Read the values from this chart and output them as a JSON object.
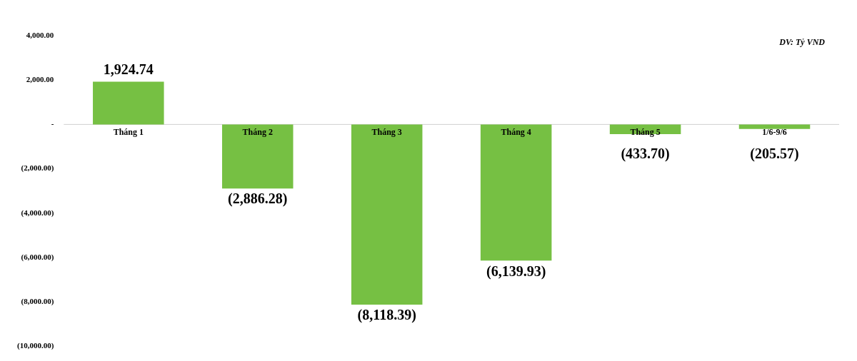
{
  "chart_data": {
    "type": "bar",
    "categories": [
      "Tháng 1",
      "Tháng 2",
      "Tháng 3",
      "Tháng 4",
      "Tháng 5",
      "1/6-9/6"
    ],
    "values": [
      1924.74,
      -2886.28,
      -8118.39,
      -6139.93,
      -433.7,
      -205.57
    ],
    "color": "#76c043",
    "value_labels": [
      "1,924.74",
      "(2,886.28)",
      "(8,118.39)",
      "(6,139.93)",
      "(433.70)",
      "(205.57)"
    ],
    "ylim": [
      -10000,
      4000
    ],
    "yticks": [
      {
        "value": 4000,
        "label": "4,000.00"
      },
      {
        "value": 2000,
        "label": "2,000.00"
      },
      {
        "value": 0,
        "label": "-"
      },
      {
        "value": -2000,
        "label": "(2,000.00)"
      },
      {
        "value": -4000,
        "label": "(4,000.00)"
      },
      {
        "value": -6000,
        "label": "(6,000.00)"
      },
      {
        "value": -8000,
        "label": "(8,000.00)"
      },
      {
        "value": -10000,
        "label": "(10,000.00)"
      }
    ],
    "annotations": [
      "DV: Tỷ VND"
    ],
    "grid": false,
    "legend": false
  }
}
